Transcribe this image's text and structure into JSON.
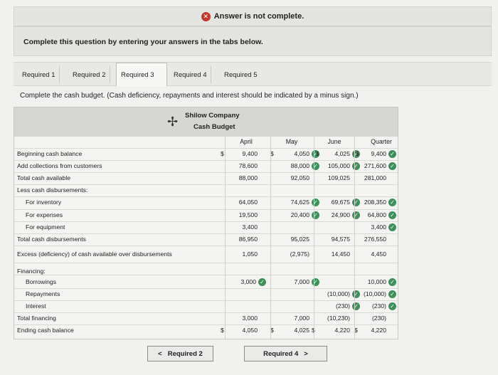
{
  "banner": {
    "text": "Answer is not complete."
  },
  "instructions": "Complete this question by entering your answers in the tabs below.",
  "tabs": [
    {
      "label": "Required 1"
    },
    {
      "label": "Required 2"
    },
    {
      "label": "Required 3"
    },
    {
      "label": "Required 4"
    },
    {
      "label": "Required 5"
    }
  ],
  "cash_instruction": "Complete the cash budget. (Cash deficiency, repayments and interest should be indicated by a minus sign.)",
  "budget": {
    "company": "Shilow Company",
    "title": "Cash Budget",
    "columns": [
      "April",
      "May",
      "June",
      "Quarter"
    ],
    "rows": {
      "beginning": {
        "label": "Beginning cash balance",
        "april": "9,400",
        "may": "4,050",
        "june": "4,025",
        "quarter": "9,400"
      },
      "collections": {
        "label": "Add collections from customers",
        "april": "78,600",
        "may": "88,000",
        "june": "105,000",
        "quarter": "271,600"
      },
      "available": {
        "label": "Total cash available",
        "april": "88,000",
        "may": "92,050",
        "june": "109,025",
        "quarter": "281,000"
      },
      "less": {
        "label": "Less cash disbursements:"
      },
      "inventory": {
        "label": "For inventory",
        "april": "64,050",
        "may": "74,625",
        "june": "69,675",
        "quarter": "208,350"
      },
      "expenses": {
        "label": "For expenses",
        "april": "19,500",
        "may": "20,400",
        "june": "24,900",
        "quarter": "64,800"
      },
      "equipment": {
        "label": "For equipment",
        "april": "3,400",
        "quarter": "3,400"
      },
      "total_disb": {
        "label": "Total cash disbursements",
        "april": "86,950",
        "may": "95,025",
        "june": "94,575",
        "quarter": "276,550"
      },
      "excess": {
        "label": "Excess (deficiency) of cash available over disbursements",
        "april": "1,050",
        "may": "(2,975)",
        "june": "14,450",
        "quarter": "4,450"
      },
      "financing": {
        "label": "Financing:"
      },
      "borrowings": {
        "label": "Borrowings",
        "april": "3,000",
        "may": "7,000",
        "quarter": "10,000"
      },
      "repayments": {
        "label": "Repayments",
        "june": "(10,000)",
        "quarter": "(10,000)"
      },
      "interest": {
        "label": "Interest",
        "june": "(230)",
        "quarter": "(230)"
      },
      "total_fin": {
        "label": "Total financing",
        "april": "3,000",
        "may": "7,000",
        "june": "(10,230)",
        "quarter": "(230)"
      },
      "ending": {
        "label": "Ending cash balance",
        "april": "4,050",
        "may": "4,025",
        "june": "4,220",
        "quarter": "4,220"
      }
    },
    "currency": "$",
    "check": "✓"
  },
  "nav": {
    "prev": "Required 2",
    "next": "Required 4",
    "prev_arrow": "<",
    "next_arrow": ">"
  },
  "colors": {
    "check": "#3f8f5a",
    "error": "#c0392b"
  }
}
